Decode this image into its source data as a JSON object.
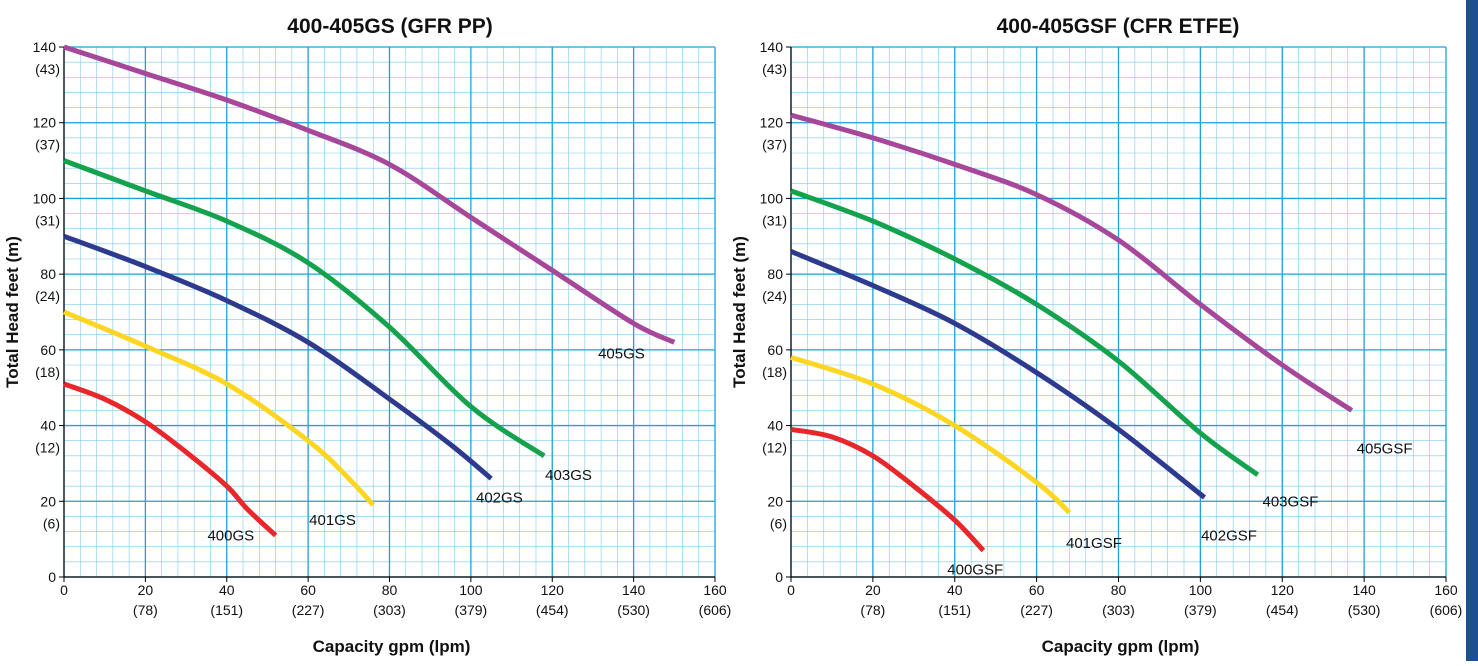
{
  "colors": {
    "grid_major": "#1ea0dc",
    "grid_minor": "#7fcaf0",
    "axis": "#000000",
    "side_bar": "#1d4f91"
  },
  "chart_data": [
    {
      "type": "line",
      "title": "400-405GS (GFR PP)",
      "xlabel": "Capacity gpm (lpm)",
      "ylabel": "Total Head feet (m)",
      "xlim": [
        0,
        160
      ],
      "ylim": [
        0,
        140
      ],
      "grid": true,
      "x_ticks": [
        {
          "value": 0,
          "label": "0",
          "sub": ""
        },
        {
          "value": 20,
          "label": "20",
          "sub": "(78)"
        },
        {
          "value": 40,
          "label": "40",
          "sub": "(151)"
        },
        {
          "value": 60,
          "label": "60",
          "sub": "(227)"
        },
        {
          "value": 80,
          "label": "80",
          "sub": "(303)"
        },
        {
          "value": 100,
          "label": "100",
          "sub": "(379)"
        },
        {
          "value": 120,
          "label": "120",
          "sub": "(454)"
        },
        {
          "value": 140,
          "label": "140",
          "sub": "(530)"
        },
        {
          "value": 160,
          "label": "160",
          "sub": "(606)"
        }
      ],
      "y_ticks": [
        {
          "value": 0,
          "label": "0",
          "sub": ""
        },
        {
          "value": 20,
          "label": "20",
          "sub": "(6)"
        },
        {
          "value": 40,
          "label": "40",
          "sub": "(12)"
        },
        {
          "value": 60,
          "label": "60",
          "sub": "(18)"
        },
        {
          "value": 80,
          "label": "80",
          "sub": "(24)"
        },
        {
          "value": 100,
          "label": "100",
          "sub": "(31)"
        },
        {
          "value": 120,
          "label": "120",
          "sub": "(37)"
        },
        {
          "value": 140,
          "label": "140",
          "sub": "(43)"
        }
      ],
      "series": [
        {
          "name": "400GS",
          "color": "#e8272a",
          "x": [
            0,
            10,
            20,
            30,
            40,
            45,
            52
          ],
          "y": [
            51,
            47,
            41,
            33,
            24,
            18,
            11
          ]
        },
        {
          "name": "401GS",
          "color": "#fcd622",
          "x": [
            0,
            20,
            40,
            60,
            70,
            76
          ],
          "y": [
            70,
            61,
            51,
            36,
            26,
            19
          ]
        },
        {
          "name": "402GS",
          "color": "#2e3a8e",
          "x": [
            0,
            20,
            40,
            60,
            80,
            95,
            105
          ],
          "y": [
            90,
            82,
            73,
            62,
            47,
            35,
            26
          ]
        },
        {
          "name": "403GS",
          "color": "#15a24c",
          "x": [
            0,
            20,
            40,
            60,
            80,
            100,
            118
          ],
          "y": [
            110,
            102,
            94,
            83,
            66,
            45,
            32
          ]
        },
        {
          "name": "405GS",
          "color": "#a6479a",
          "x": [
            0,
            20,
            40,
            60,
            80,
            100,
            120,
            140,
            150
          ],
          "y": [
            140,
            133,
            126,
            118,
            109,
            95,
            81,
            67,
            62
          ]
        }
      ],
      "annotations": [
        {
          "text": "400GS",
          "x": 41,
          "y": 11
        },
        {
          "text": "401GS",
          "x": 66,
          "y": 15
        },
        {
          "text": "402GS",
          "x": 107,
          "y": 21
        },
        {
          "text": "403GS",
          "x": 124,
          "y": 27
        },
        {
          "text": "405GS",
          "x": 137,
          "y": 59
        }
      ]
    },
    {
      "type": "line",
      "title": "400-405GSF (CFR ETFE)",
      "xlabel": "Capacity gpm (lpm)",
      "ylabel": "Total Head feet (m)",
      "xlim": [
        0,
        160
      ],
      "ylim": [
        0,
        140
      ],
      "grid": true,
      "x_ticks": [
        {
          "value": 0,
          "label": "0",
          "sub": ""
        },
        {
          "value": 20,
          "label": "20",
          "sub": "(78)"
        },
        {
          "value": 40,
          "label": "40",
          "sub": "(151)"
        },
        {
          "value": 60,
          "label": "60",
          "sub": "(227)"
        },
        {
          "value": 80,
          "label": "80",
          "sub": "(303)"
        },
        {
          "value": 100,
          "label": "100",
          "sub": "(379)"
        },
        {
          "value": 120,
          "label": "120",
          "sub": "(454)"
        },
        {
          "value": 140,
          "label": "140",
          "sub": "(530)"
        },
        {
          "value": 160,
          "label": "160",
          "sub": "(606)"
        }
      ],
      "y_ticks": [
        {
          "value": 0,
          "label": "0",
          "sub": ""
        },
        {
          "value": 20,
          "label": "20",
          "sub": "(6)"
        },
        {
          "value": 40,
          "label": "40",
          "sub": "(12)"
        },
        {
          "value": 60,
          "label": "60",
          "sub": "(18)"
        },
        {
          "value": 80,
          "label": "80",
          "sub": "(24)"
        },
        {
          "value": 100,
          "label": "100",
          "sub": "(31)"
        },
        {
          "value": 120,
          "label": "120",
          "sub": "(37)"
        },
        {
          "value": 140,
          "label": "140",
          "sub": "(43)"
        }
      ],
      "series": [
        {
          "name": "400GSF",
          "color": "#e8272a",
          "x": [
            0,
            10,
            20,
            30,
            40,
            47
          ],
          "y": [
            39,
            37,
            32,
            24,
            15,
            7
          ]
        },
        {
          "name": "401GSF",
          "color": "#fcd622",
          "x": [
            0,
            20,
            40,
            60,
            68
          ],
          "y": [
            58,
            51,
            40,
            25,
            17
          ]
        },
        {
          "name": "402GSF",
          "color": "#2e3a8e",
          "x": [
            0,
            20,
            40,
            60,
            80,
            101
          ],
          "y": [
            86,
            77,
            67,
            54,
            39,
            21
          ]
        },
        {
          "name": "403GSF",
          "color": "#15a24c",
          "x": [
            0,
            20,
            40,
            60,
            80,
            100,
            114
          ],
          "y": [
            102,
            94,
            84,
            72,
            57,
            38,
            27
          ]
        },
        {
          "name": "405GSF",
          "color": "#a6479a",
          "x": [
            0,
            20,
            40,
            60,
            80,
            100,
            120,
            137
          ],
          "y": [
            122,
            116,
            109,
            101,
            89,
            72,
            56,
            44
          ]
        }
      ],
      "annotations": [
        {
          "text": "400GSF",
          "x": 45,
          "y": 2
        },
        {
          "text": "401GSF",
          "x": 74,
          "y": 9
        },
        {
          "text": "402GSF",
          "x": 107,
          "y": 11
        },
        {
          "text": "403GSF",
          "x": 122,
          "y": 20
        },
        {
          "text": "405GSF",
          "x": 145,
          "y": 34
        }
      ]
    }
  ]
}
